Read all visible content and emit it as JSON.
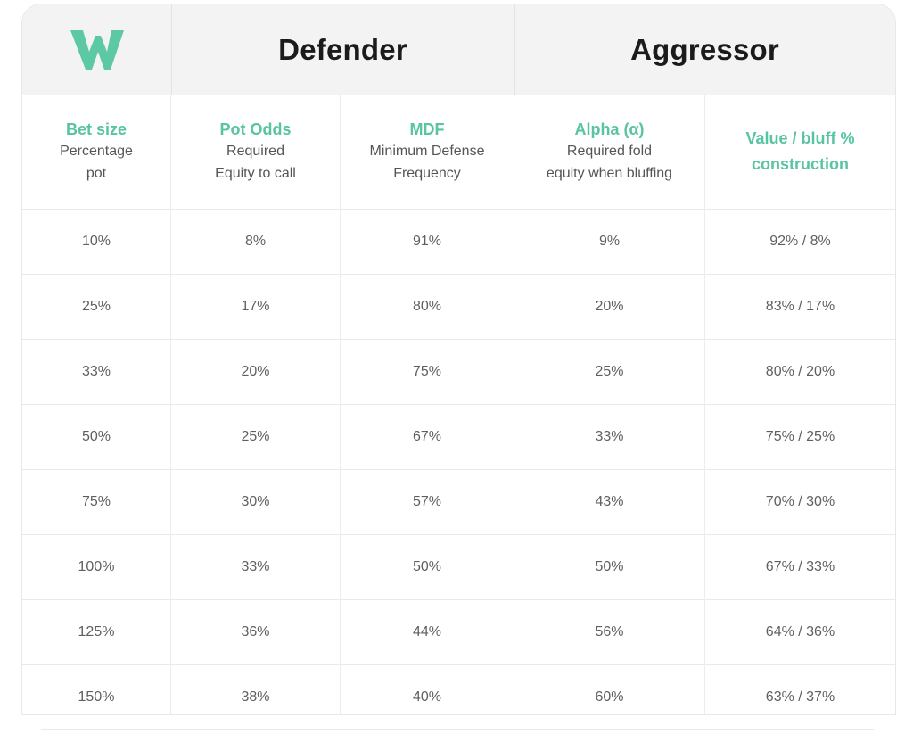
{
  "logo": {
    "icon": "w-logo-icon",
    "color": "#5cc9a4"
  },
  "groups": {
    "defender": "Defender",
    "aggressor": "Aggressor"
  },
  "columns": [
    {
      "title": "Bet size",
      "sub": [
        "Percentage",
        "pot"
      ]
    },
    {
      "title": "Pot Odds",
      "sub": [
        "Required",
        "Equity to call"
      ]
    },
    {
      "title": "MDF",
      "sub": [
        "Minimum Defense",
        "Frequency"
      ]
    },
    {
      "title": "Alpha (α)",
      "sub": [
        "Required fold",
        "equity when bluffing"
      ]
    },
    {
      "title_lines": [
        "Value / bluff %",
        "construction"
      ]
    }
  ],
  "rows": [
    [
      "10%",
      "8%",
      "91%",
      "9%",
      "92% / 8%"
    ],
    [
      "25%",
      "17%",
      "80%",
      "20%",
      "83% / 17%"
    ],
    [
      "33%",
      "20%",
      "75%",
      "25%",
      "80% / 20%"
    ],
    [
      "50%",
      "25%",
      "67%",
      "33%",
      "75% / 25%"
    ],
    [
      "75%",
      "30%",
      "57%",
      "43%",
      "70% / 30%"
    ],
    [
      "100%",
      "33%",
      "50%",
      "50%",
      "67% / 33%"
    ],
    [
      "125%",
      "36%",
      "44%",
      "56%",
      "64% / 36%"
    ],
    [
      "150%",
      "38%",
      "40%",
      "60%",
      "63% / 37%"
    ]
  ]
}
